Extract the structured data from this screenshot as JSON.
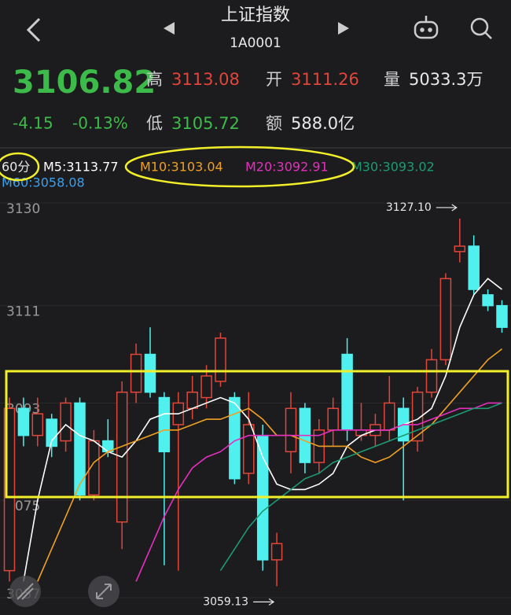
{
  "header": {
    "title": "上证指数",
    "code": "1A0001",
    "price": "3106.82",
    "change": "-4.15",
    "change_pct": "-0.13%",
    "stats": [
      {
        "label": "高",
        "value": "3113.08"
      },
      {
        "label": "开",
        "value": "3111.26"
      },
      {
        "label": "量",
        "value": "5033.3万"
      },
      {
        "label": "低",
        "value": "3105.72"
      },
      {
        "label": "额",
        "value": "588.0亿"
      }
    ]
  },
  "chart_data": {
    "type": "candlestick",
    "period": "60分",
    "up_color": "#e0463a",
    "down_color": "#4ff0ee",
    "open": [
      3062,
      3092,
      3087,
      3090,
      3086,
      3093,
      3076,
      3086,
      3071,
      3095,
      3102,
      3094,
      3089,
      3092,
      3094,
      3097,
      3094,
      3080,
      3087,
      3064,
      3084,
      3092,
      3082,
      3088,
      3102,
      3087,
      3087,
      3088,
      3092,
      3086,
      3095,
      3101,
      3121,
      3122,
      3113,
      3111
    ],
    "high": [
      3094,
      3094,
      3094,
      3091,
      3094,
      3094,
      3088,
      3090,
      3097,
      3104,
      3107,
      3095,
      3095,
      3098,
      3100,
      3106,
      3095,
      3095,
      3089,
      3069,
      3095,
      3093,
      3090,
      3094,
      3105,
      3093,
      3091,
      3098,
      3094,
      3096,
      3103,
      3117,
      3127.1,
      3124,
      3114,
      3112
    ],
    "low": [
      3060,
      3085,
      3085,
      3083,
      3084,
      3075,
      3075,
      3083,
      3066,
      3093,
      3094,
      3063,
      3062,
      3090,
      3092,
      3096,
      3078,
      3078,
      3062,
      3059.13,
      3080,
      3080,
      3080,
      3085,
      3086,
      3086,
      3085,
      3086,
      3075,
      3084,
      3094,
      3100,
      3119,
      3113,
      3110,
      3106
    ],
    "close": [
      3092,
      3087,
      3091,
      3085,
      3093,
      3076,
      3086,
      3084,
      3095,
      3102,
      3095,
      3084,
      3093,
      3095,
      3098,
      3105,
      3079,
      3089,
      3064,
      3067,
      3092,
      3082,
      3088,
      3092,
      3088,
      3088,
      3089,
      3093,
      3086,
      3095,
      3101,
      3116,
      3122,
      3114,
      3111,
      3107
    ],
    "high_label": "3127.10",
    "low_label": "3059.13",
    "series": [
      {
        "name": "M5:3113.77",
        "color": "#ffffff",
        "values": [
          null,
          3060,
          3075,
          3086,
          3089,
          3087,
          3086,
          3084,
          3083,
          3086,
          3090,
          3091,
          3091,
          3092,
          3093,
          3094,
          3093,
          3090,
          3083,
          3078,
          3077,
          3077,
          3078,
          3080,
          3085,
          3087,
          3088,
          3088,
          3089,
          3090,
          3092,
          3098,
          3107,
          3113,
          3116,
          3114
        ]
      },
      {
        "name": "M10:3103.04",
        "color": "#f0a020",
        "values": [
          null,
          null,
          3060,
          3066,
          3072,
          3078,
          3082,
          3084,
          3085,
          3086,
          3087,
          3088,
          3088,
          3089,
          3090,
          3090,
          3091,
          3092,
          3090,
          3087,
          3087,
          3086,
          3085,
          3085,
          3085,
          3083,
          3082,
          3083,
          3085,
          3087,
          3089,
          3092,
          3095,
          3098,
          3101,
          3103
        ]
      },
      {
        "name": "M20:3092.91",
        "color": "#e62fbf",
        "values": [
          null,
          null,
          null,
          null,
          null,
          null,
          null,
          null,
          null,
          3060,
          3066,
          3072,
          3077,
          3081,
          3083,
          3084,
          3086,
          3087,
          3087,
          3087,
          3087,
          3087,
          3087,
          3088,
          3088,
          3088,
          3088,
          3088,
          3089,
          3089,
          3090,
          3091,
          3092,
          3092,
          3093,
          3093
        ]
      },
      {
        "name": "M30:3093.02",
        "color": "#1e9a72",
        "values": [
          null,
          null,
          null,
          null,
          null,
          null,
          null,
          null,
          null,
          null,
          null,
          null,
          null,
          null,
          null,
          3062,
          3066,
          3070,
          3073,
          3075,
          3077,
          3079,
          3080,
          3082,
          3083,
          3084,
          3085,
          3086,
          3087,
          3088,
          3089,
          3090,
          3091,
          3092,
          3092,
          3093
        ]
      }
    ],
    "extra_legend": {
      "name": "M60:3058.08",
      "color": "#3aa0ee"
    },
    "ylim": [
      3057,
      3130
    ],
    "yticks": [
      3130,
      3111,
      3093,
      3075,
      3057
    ],
    "grid": true
  }
}
